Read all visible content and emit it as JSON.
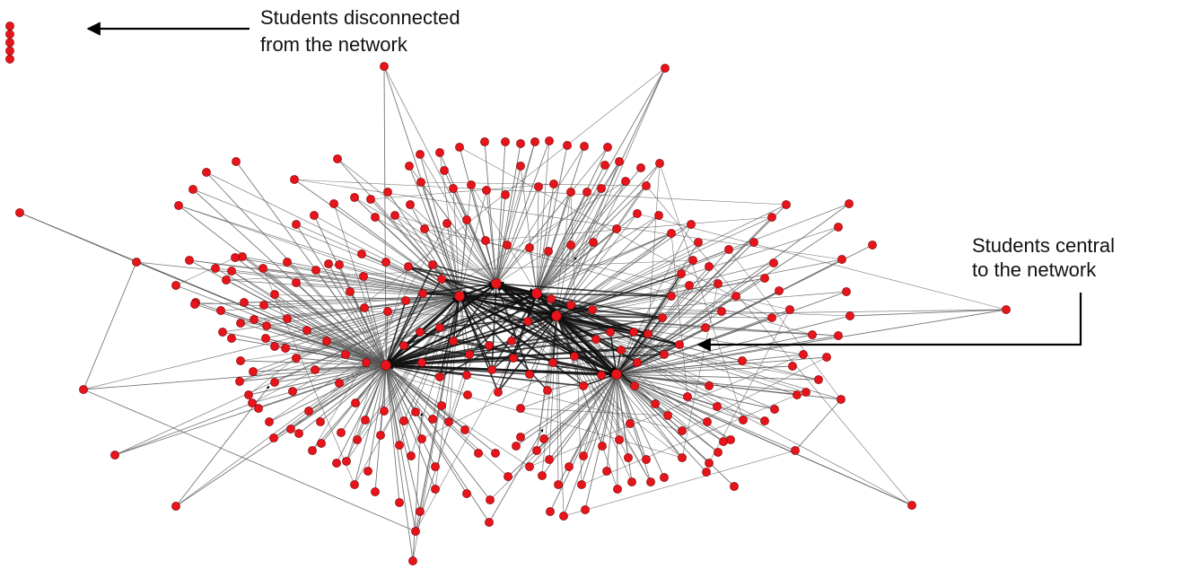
{
  "annotations": {
    "disconnected": {
      "line1": "Students disconnected",
      "line2": "from the network"
    },
    "central": {
      "line1": "Students central",
      "line2": "to the network"
    }
  },
  "style": {
    "node_color": "#e8141b",
    "node_stroke": "#7a0000",
    "edge_color": "#555555",
    "hub_edge_color": "#111111",
    "arrow_color": "#000000",
    "text_color": "#111111"
  }
}
